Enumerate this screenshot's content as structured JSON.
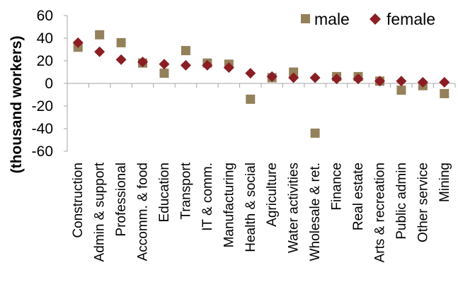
{
  "chart_data": {
    "type": "scatter",
    "ylabel": "(thousand workers)",
    "ylim": [
      -60,
      60
    ],
    "yticks": [
      60,
      40,
      20,
      0,
      -20,
      -40,
      -60
    ],
    "grid": false,
    "legend_position": "top-right",
    "categories": [
      "Construction",
      "Admin & support",
      "Professional",
      "Accomm. & food",
      "Education",
      "Transport",
      "IT & comm.",
      "Manufacturing",
      "Health & social",
      "Agriculture",
      "Water activities",
      "Wholesale & ret.",
      "Finance",
      "Real estate",
      "Arts & recreation",
      "Public admin",
      "Other service",
      "Mining"
    ],
    "series": [
      {
        "name": "male",
        "marker": "square",
        "color": "#94805a",
        "values": [
          32,
          43,
          36,
          18,
          9,
          29,
          18,
          17,
          -14,
          5,
          10,
          -44,
          6,
          6,
          2,
          -6,
          -2,
          -9
        ]
      },
      {
        "name": "female",
        "marker": "diamond",
        "color": "#8b1d24",
        "values": [
          36,
          28,
          21,
          19,
          17,
          16,
          16,
          14,
          9,
          6,
          5,
          5,
          4,
          4,
          2,
          2,
          1,
          1
        ]
      }
    ]
  }
}
